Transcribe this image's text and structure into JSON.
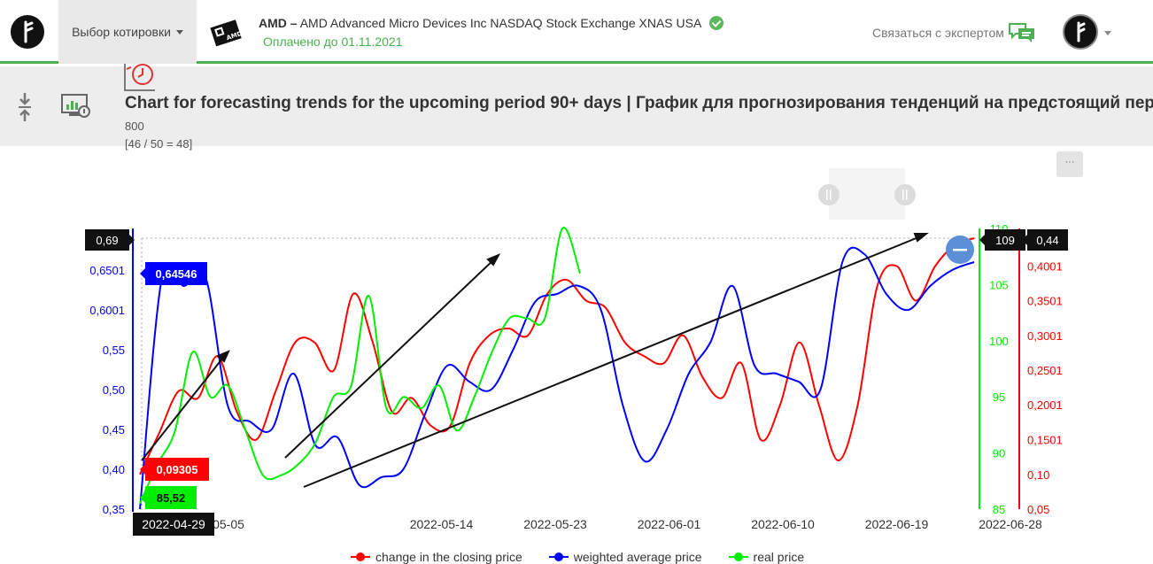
{
  "header": {
    "quote_select_label": "Выбор котировки",
    "symbol": "AMD –",
    "company": "AMD Advanced Micro Devices Inc NASDAQ Stock Exchange XNAS USA",
    "paid_until": "Оплачено до 01.11.2021",
    "contact_label": "Связаться с экспертом",
    "amd_logo_text": "AMD"
  },
  "subheader": {
    "title": "Chart for forecasting trends for the upcoming period 90+ days | График для прогнозирования тенденций на предстоящий период 90+ дней",
    "line1": "800",
    "line2": "[46 / 50 = 48]"
  },
  "toolbar": {
    "more_label": "···"
  },
  "icons": [
    "logo-icon",
    "caret-down-icon",
    "amd-logo-icon",
    "verified-check-icon",
    "chat-icon",
    "avatar-icon",
    "collapse-arrows-icon",
    "monitor-chart-icon",
    "clock-chart-icon",
    "zoom-handle-icon",
    "minus-icon"
  ],
  "colors": {
    "accent": "#4caf50",
    "series_change": "#ff0000",
    "series_weighted": "#0000ff",
    "series_real": "#00ee00"
  },
  "chart_data": {
    "type": "line",
    "x_ticks": [
      "2022-05-05",
      "2022-05-14",
      "2022-05-23",
      "2022-06-01",
      "2022-06-10",
      "2022-06-19",
      "2022-06-28"
    ],
    "axis_left_blue": {
      "ticks": [
        "0,35",
        "0,40",
        "0,45",
        "0,50",
        "0,55",
        "0,6001",
        "0,6501"
      ],
      "range": [
        0.35,
        0.69
      ]
    },
    "axis_right_green": {
      "ticks": [
        "85",
        "90",
        "95",
        "100",
        "105",
        "110"
      ],
      "range": [
        85,
        110
      ]
    },
    "axis_right_red": {
      "ticks": [
        "0,05",
        "0,10",
        "0,1501",
        "0,2001",
        "0,2501",
        "0,3001",
        "0,3501",
        "0,4001"
      ],
      "range": [
        0.05,
        0.44
      ]
    },
    "crosshair": {
      "left_value": "0,69",
      "right_green_value": "109",
      "right_red_value": "0,44",
      "x_value": "2022-04-29",
      "blue_value": "0,64546",
      "red_value": "0,09305",
      "green_value": "85,52"
    },
    "series": [
      {
        "name": "change in the closing price",
        "color": "#ff0000",
        "axis": "right_red",
        "values": [
          0.1,
          0.16,
          0.22,
          0.21,
          0.27,
          0.19,
          0.15,
          0.22,
          0.29,
          0.29,
          0.25,
          0.36,
          0.29,
          0.19,
          0.21,
          0.17,
          0.17,
          0.26,
          0.3,
          0.31,
          0.3,
          0.36,
          0.38,
          0.35,
          0.34,
          0.29,
          0.27,
          0.26,
          0.3,
          0.24,
          0.21,
          0.26,
          0.15,
          0.2,
          0.29,
          0.2,
          0.12,
          0.2,
          0.37,
          0.4,
          0.35,
          0.4,
          0.43,
          0.44
        ]
      },
      {
        "name": "weighted average price",
        "color": "#0000ff",
        "axis": "left_blue",
        "values": [
          0.35,
          0.64,
          0.63,
          0.64,
          0.48,
          0.46,
          0.45,
          0.52,
          0.43,
          0.44,
          0.38,
          0.39,
          0.4,
          0.47,
          0.53,
          0.51,
          0.5,
          0.55,
          0.61,
          0.62,
          0.63,
          0.6,
          0.48,
          0.41,
          0.45,
          0.52,
          0.56,
          0.63,
          0.53,
          0.52,
          0.51,
          0.5,
          0.66,
          0.67,
          0.62,
          0.6,
          0.63,
          0.65,
          0.66
        ]
      },
      {
        "name": "real price",
        "color": "#00ee00",
        "axis": "right_green",
        "values": [
          85.5,
          89,
          92,
          99,
          95,
          96,
          92,
          88,
          88,
          89,
          91,
          95,
          96,
          104,
          94,
          95,
          94,
          96,
          92,
          95,
          99,
          102,
          102,
          102,
          110,
          106
        ]
      }
    ],
    "legend_position": "bottom-center"
  }
}
